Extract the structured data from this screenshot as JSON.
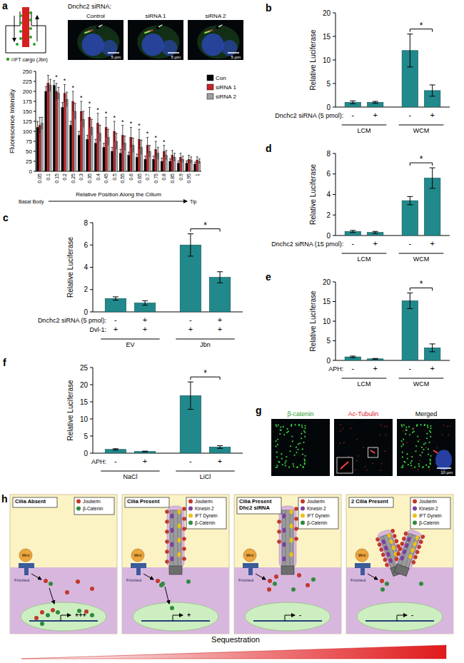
{
  "chart_data": [
    {
      "panel": "a",
      "type": "bar",
      "y_label": "Fluorescence Intensity",
      "x_label": "Relative Position Along the Cilium",
      "x_start_label": "Basal Body",
      "x_end_label": "Tip",
      "categories": [
        "0.05",
        "0.1",
        "0.15",
        "0.2",
        "0.25",
        "0.3",
        "0.35",
        "0.4",
        "0.45",
        "0.5",
        "0.55",
        "0.6",
        "0.65",
        "0.7",
        "0.75",
        "0.8",
        "0.85",
        "0.9",
        "0.95",
        "1"
      ],
      "series": [
        {
          "name": "Con",
          "color": "#000000",
          "values": [
            110,
            200,
            215,
            160,
            115,
            90,
            80,
            70,
            60,
            50,
            45,
            40,
            35,
            30,
            30,
            25,
            25,
            20,
            20,
            18
          ],
          "errors": [
            15,
            12,
            12,
            12,
            10,
            10,
            10,
            10,
            10,
            10,
            10,
            8,
            8,
            8,
            8,
            8,
            6,
            6,
            6,
            5
          ]
        },
        {
          "name": "siRNA 1",
          "color": "#c8232c",
          "values": [
            115,
            220,
            200,
            195,
            175,
            150,
            135,
            120,
            110,
            100,
            90,
            85,
            80,
            65,
            55,
            50,
            40,
            35,
            30,
            28
          ],
          "errors": [
            20,
            20,
            20,
            22,
            25,
            25,
            25,
            25,
            25,
            25,
            25,
            25,
            25,
            20,
            20,
            15,
            12,
            10,
            10,
            8
          ]
        },
        {
          "name": "siRNA 2",
          "color": "#a0a0a0",
          "values": [
            120,
            215,
            195,
            180,
            150,
            130,
            110,
            95,
            85,
            75,
            70,
            65,
            60,
            50,
            45,
            40,
            35,
            30,
            28,
            25
          ],
          "errors": [
            15,
            15,
            15,
            18,
            20,
            20,
            20,
            20,
            20,
            20,
            18,
            18,
            18,
            15,
            15,
            12,
            10,
            8,
            8,
            6
          ]
        }
      ],
      "ylim": [
        0,
        250
      ],
      "yticks": [
        0,
        25,
        50,
        75,
        100,
        125,
        150,
        175,
        200,
        225,
        250
      ],
      "legend": "right",
      "asterisks": [
        null,
        null,
        "*",
        "*",
        "*",
        "*",
        "*",
        "*",
        "*",
        "*",
        "*",
        "*",
        "*",
        "*",
        "*",
        "*",
        null,
        null,
        null,
        null
      ]
    },
    {
      "panel": "b",
      "type": "bar",
      "y_label": "Relative Luciferase",
      "categories": [
        null,
        null,
        null,
        null
      ],
      "values": [
        1.0,
        1.0,
        12.0,
        3.5
      ],
      "errors": [
        0.3,
        0.2,
        3.5,
        1.2
      ],
      "color": "#21898b",
      "ylim": [
        0,
        20
      ],
      "yticks": [
        0,
        5,
        10,
        15,
        20
      ],
      "rows": [
        {
          "label": "Dnchc2 siRNA (5 pmol):",
          "values": [
            "-",
            "+",
            "-",
            "+"
          ]
        }
      ],
      "groups": [
        "LCM",
        "WCM"
      ],
      "significance": [
        {
          "bars": [
            2,
            3
          ],
          "label": "*"
        }
      ]
    },
    {
      "panel": "c",
      "type": "bar",
      "y_label": "Relative Luciferase",
      "categories": [
        null,
        null,
        null,
        null
      ],
      "values": [
        1.2,
        0.8,
        6.0,
        3.1
      ],
      "errors": [
        0.15,
        0.2,
        1.0,
        0.5
      ],
      "color": "#21898b",
      "ylim": [
        0,
        8
      ],
      "yticks": [
        0,
        2,
        4,
        6,
        8
      ],
      "rows": [
        {
          "label": "Dnchc2 siRNA (5 pmol):",
          "values": [
            "-",
            "+",
            "-",
            "+"
          ]
        },
        {
          "label": "Dvl-1:",
          "values": [
            "+",
            "+",
            "+",
            "+"
          ]
        }
      ],
      "groups": [
        "EV",
        "Jbn"
      ],
      "significance": [
        {
          "bars": [
            2,
            3
          ],
          "label": "*"
        }
      ]
    },
    {
      "panel": "d",
      "type": "bar",
      "y_label": "Relative Luciferase",
      "categories": [
        null,
        null,
        null,
        null
      ],
      "values": [
        0.4,
        0.3,
        3.4,
        5.6
      ],
      "errors": [
        0.1,
        0.1,
        0.4,
        1.0
      ],
      "color": "#21898b",
      "ylim": [
        0,
        8
      ],
      "yticks": [
        0,
        2,
        4,
        6,
        8
      ],
      "rows": [
        {
          "label": "Dnchc2 siRNA (15 pmol):",
          "values": [
            "-",
            "+",
            "-",
            "+"
          ]
        }
      ],
      "groups": [
        "LCM",
        "WCM"
      ],
      "significance": [
        {
          "bars": [
            2,
            3
          ],
          "label": "*"
        }
      ]
    },
    {
      "panel": "e",
      "type": "bar",
      "y_label": "Relative Luciferase",
      "categories": [
        null,
        null,
        null,
        null
      ],
      "values": [
        0.9,
        0.4,
        15.2,
        3.2
      ],
      "errors": [
        0.2,
        0.1,
        2.0,
        1.0
      ],
      "color": "#21898b",
      "ylim": [
        0,
        20
      ],
      "yticks": [
        0,
        5,
        10,
        15,
        20
      ],
      "rows": [
        {
          "label": "APH:",
          "values": [
            "-",
            "+",
            "-",
            "+"
          ]
        }
      ],
      "groups": [
        "LCM",
        "WCM"
      ],
      "significance": [
        {
          "bars": [
            2,
            3
          ],
          "label": "*"
        }
      ]
    },
    {
      "panel": "f",
      "type": "bar",
      "y_label": "Relative Luciferase",
      "categories": [
        null,
        null,
        null,
        null
      ],
      "values": [
        1.1,
        0.5,
        16.8,
        1.8
      ],
      "errors": [
        0.2,
        0.1,
        4.0,
        0.4
      ],
      "color": "#21898b",
      "ylim": [
        0,
        25
      ],
      "yticks": [
        0,
        5,
        10,
        15,
        20,
        25
      ],
      "rows": [
        {
          "label": "APH:",
          "values": [
            "-",
            "+",
            "-",
            "+"
          ]
        }
      ],
      "groups": [
        "NaCl",
        "LiCl"
      ],
      "significance": [
        {
          "bars": [
            2,
            3
          ],
          "label": "*"
        }
      ]
    }
  ],
  "panel_a": {
    "schematic_legend": "=IFT cargo (Jbn)",
    "images_title": "Dnchc2 siRNA:",
    "images": [
      {
        "label": "Control",
        "scale": "5 µm"
      },
      {
        "label": "siRNA 1",
        "scale": "5 µm"
      },
      {
        "label": "siRNA 2",
        "scale": "5 µm"
      }
    ]
  },
  "panel_g": {
    "letter": "g",
    "scale": "10 µm",
    "images": [
      {
        "label": "β-catenin",
        "color": "#2ca02c"
      },
      {
        "label": "Ac-Tubulin",
        "color": "#d62728"
      },
      {
        "label": "Merged",
        "color": "#000000"
      }
    ]
  },
  "panel_h": {
    "letter": "h",
    "wnt": "Wnt",
    "frizzled": "Frizzled",
    "sequestration": "Sequestration",
    "cells": [
      {
        "title": [
          "Cilia Absent"
        ],
        "legend": [
          {
            "label": "Jouberin",
            "color": "#c0392b"
          },
          {
            "label": "β-Catenin",
            "color": "#2e8b3e"
          }
        ],
        "nucleus": "+++"
      },
      {
        "title": [
          "Cilia Present"
        ],
        "legend": [
          {
            "label": "Jouberin",
            "color": "#c0392b"
          },
          {
            "label": "Kinesin 2",
            "color": "#7b3fa0"
          },
          {
            "label": "IFT Dynein",
            "color": "#e8c21a"
          },
          {
            "label": "β-Catenin",
            "color": "#2e8b3e"
          }
        ],
        "nucleus": "+"
      },
      {
        "title": [
          "Cilia Present",
          "Dhc2 siRNA"
        ],
        "legend": [
          {
            "label": "Jouberin",
            "color": "#c0392b"
          },
          {
            "label": "Kinesin 2",
            "color": "#7b3fa0"
          },
          {
            "label": "IFT Dynein",
            "color": "#e8c21a"
          },
          {
            "label": "β-Catenin",
            "color": "#2e8b3e"
          }
        ],
        "nucleus": "-"
      },
      {
        "title": [
          "2 Cilia Present"
        ],
        "legend": [
          {
            "label": "Jouberin",
            "color": "#c0392b"
          },
          {
            "label": "Kinesin 2",
            "color": "#7b3fa0"
          },
          {
            "label": "IFT Dynein",
            "color": "#e8c21a"
          },
          {
            "label": "β-Catenin",
            "color": "#2e8b3e"
          }
        ],
        "nucleus": "-"
      }
    ]
  }
}
